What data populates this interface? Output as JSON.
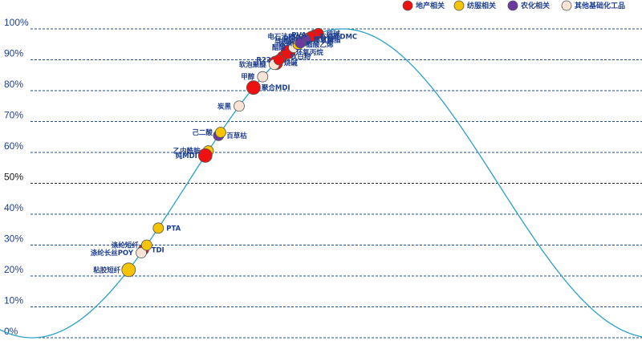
{
  "chart_data": {
    "type": "scatter",
    "title": "",
    "xlabel": "",
    "ylabel": "",
    "ylim": [
      0,
      100
    ],
    "y_ticks": [
      "0%",
      "10%",
      "20%",
      "30%",
      "40%",
      "50%",
      "60%",
      "70%",
      "80%",
      "90%",
      "100%"
    ],
    "curve": "cycle position (sine wave)",
    "legend": [
      {
        "name": "地产相关",
        "color": "#ee1111"
      },
      {
        "name": "纺服相关",
        "color": "#f5c400"
      },
      {
        "name": "农化相关",
        "color": "#6b3a9e"
      },
      {
        "name": "其他基础化工品",
        "color": "#f7e4d7"
      }
    ],
    "colors": {
      "curve": "#2aa0c8",
      "grid": "#1e4f8f",
      "grid_mid": "#2b2b2b",
      "text": "#1f3f8f"
    },
    "points": [
      {
        "label": "粘胶短纤",
        "y": 22,
        "group": 1
      },
      {
        "label": "TDI",
        "y": 28.5,
        "group": 0
      },
      {
        "label": "涤纶长丝POY",
        "y": 27.5,
        "group": 3
      },
      {
        "label": "涤纶短纤",
        "y": 30,
        "group": 1
      },
      {
        "label": "PTA",
        "y": 35.5,
        "group": 1
      },
      {
        "label": "乙内酰胺",
        "y": 60.5,
        "group": 1
      },
      {
        "label": "纯MDI",
        "y": 59,
        "group": 0
      },
      {
        "label": "百草枯",
        "y": 65.5,
        "group": 2
      },
      {
        "label": "己二酸",
        "y": 66.5,
        "group": 1
      },
      {
        "label": "炭黑",
        "y": 75,
        "group": 3
      },
      {
        "label": "聚合MDI",
        "y": 81,
        "group": 0
      },
      {
        "label": "甲醇",
        "y": 84.5,
        "group": 3
      },
      {
        "label": "烧碱",
        "y": 89,
        "group": 0
      },
      {
        "label": "软泡聚醚",
        "y": 88.5,
        "group": 3
      },
      {
        "label": "钛白粉",
        "y": 91,
        "group": 0
      },
      {
        "label": "R22",
        "y": 90,
        "group": 0
      },
      {
        "label": "环氧丙烷",
        "y": 92.5,
        "group": 0
      },
      {
        "label": "醋酸",
        "y": 94,
        "group": 3
      },
      {
        "label": "醋酸乙烯",
        "y": 95,
        "group": 1
      },
      {
        "label": "草铵膦",
        "y": 96,
        "group": 2
      },
      {
        "label": "环氧树脂",
        "y": 96.5,
        "group": 1
      },
      {
        "label": "DMF",
        "y": 97,
        "group": 1
      },
      {
        "label": "有机硅DMC",
        "y": 97.5,
        "group": 0
      },
      {
        "label": "PVA",
        "y": 98,
        "group": 0
      },
      {
        "label": "纯碱",
        "y": 98.5,
        "group": 0
      },
      {
        "label": "电石法PVC",
        "y": 97.5,
        "group": 0
      },
      {
        "label": "草甘膦",
        "y": 96.5,
        "group": 2
      },
      {
        "label": "尿素",
        "y": 95.5,
        "group": 2
      }
    ]
  }
}
